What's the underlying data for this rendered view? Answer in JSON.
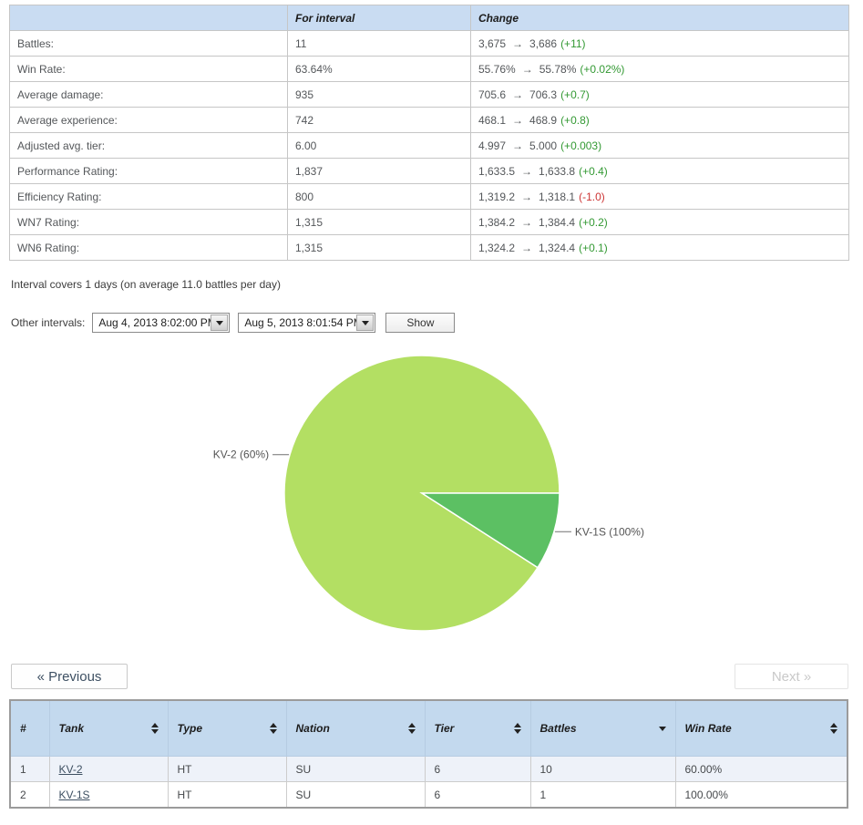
{
  "summary_table": {
    "headers": {
      "for_interval": "For interval",
      "change": "Change"
    },
    "arrow": "→",
    "rows": [
      {
        "label": "Battles:",
        "interval": "11",
        "from": "3,675",
        "to": "3,686",
        "delta": "(+11)",
        "trend": "pos"
      },
      {
        "label": "Win Rate:",
        "interval": "63.64%",
        "from": "55.76%",
        "to": "55.78%",
        "delta": "(+0.02%)",
        "trend": "pos"
      },
      {
        "label": "Average damage:",
        "interval": "935",
        "from": "705.6",
        "to": "706.3",
        "delta": "(+0.7)",
        "trend": "pos"
      },
      {
        "label": "Average experience:",
        "interval": "742",
        "from": "468.1",
        "to": "468.9",
        "delta": "(+0.8)",
        "trend": "pos"
      },
      {
        "label": "Adjusted avg. tier:",
        "interval": "6.00",
        "from": "4.997",
        "to": "5.000",
        "delta": "(+0.003)",
        "trend": "pos"
      },
      {
        "label": "Performance Rating:",
        "interval": "1,837",
        "from": "1,633.5",
        "to": "1,633.8",
        "delta": "(+0.4)",
        "trend": "pos"
      },
      {
        "label": "Efficiency Rating:",
        "interval": "800",
        "from": "1,319.2",
        "to": "1,318.1",
        "delta": "(-1.0)",
        "trend": "neg"
      },
      {
        "label": "WN7 Rating:",
        "interval": "1,315",
        "from": "1,384.2",
        "to": "1,384.4",
        "delta": "(+0.2)",
        "trend": "pos"
      },
      {
        "label": "WN6 Rating:",
        "interval": "1,315",
        "from": "1,324.2",
        "to": "1,324.4",
        "delta": "(+0.1)",
        "trend": "pos"
      }
    ],
    "colors": {
      "header_bg": "#c9dcf2",
      "positive": "#339933",
      "negative": "#cc3333"
    }
  },
  "interval_note": "Interval covers 1 days (on average 11.0 battles per day)",
  "intervals_bar": {
    "label": "Other intervals:",
    "select_from": "Aug 4, 2013 8:02:00 PM",
    "select_to": "Aug 5, 2013 8:01:54 PM",
    "show_button": "Show"
  },
  "chart_data": {
    "type": "pie",
    "title": "",
    "total_battles": 11,
    "direction": "counterclockwise",
    "start_angle_deg": 0,
    "slices": [
      {
        "name": "KV-2",
        "label": "KV-2 (60%)",
        "value": 10,
        "share_pct": 90.9,
        "win_rate": "60%",
        "color": "#b3df63"
      },
      {
        "name": "KV-1S",
        "label": "KV-1S (100%)",
        "value": 1,
        "share_pct": 9.1,
        "win_rate": "100%",
        "color": "#5cc063"
      }
    ],
    "label_color": "#555555",
    "connector_color": "#707070",
    "legend": "none"
  },
  "pagination": {
    "previous": "« Previous",
    "next": "Next »",
    "next_disabled": true
  },
  "tanks_table": {
    "header_bg": "#c3d9ee",
    "columns": [
      {
        "label": "#",
        "sort": "none"
      },
      {
        "label": "Tank",
        "sort": "both"
      },
      {
        "label": "Type",
        "sort": "both"
      },
      {
        "label": "Nation",
        "sort": "both"
      },
      {
        "label": "Tier",
        "sort": "both"
      },
      {
        "label": "Battles",
        "sort": "desc"
      },
      {
        "label": "Win Rate",
        "sort": "both"
      }
    ],
    "rows": [
      {
        "num": "1",
        "tank": "KV-2",
        "type": "HT",
        "nation": "SU",
        "tier": "6",
        "battles": "10",
        "win_rate": "60.00%"
      },
      {
        "num": "2",
        "tank": "KV-1S",
        "type": "HT",
        "nation": "SU",
        "tier": "6",
        "battles": "1",
        "win_rate": "100.00%"
      }
    ]
  }
}
